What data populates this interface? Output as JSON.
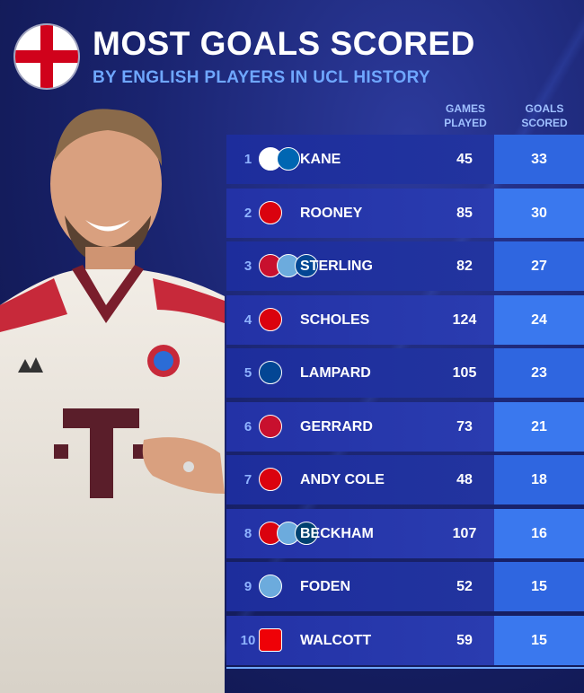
{
  "header": {
    "title": "MOST GOALS SCORED",
    "subtitle": "BY ENGLISH PLAYERS IN UCL HISTORY"
  },
  "columns": {
    "games_line1": "GAMES",
    "games_line2": "PLAYED",
    "goals_line1": "GOALS",
    "goals_line2": "SCORED"
  },
  "rows": [
    {
      "rank": "1",
      "name": "KANE",
      "games": "45",
      "goals": "33",
      "crests": [
        "tot-icon",
        "bay-icon"
      ]
    },
    {
      "rank": "2",
      "name": "ROONEY",
      "games": "85",
      "goals": "30",
      "crests": [
        "mu-icon"
      ]
    },
    {
      "rank": "3",
      "name": "STERLING",
      "games": "82",
      "goals": "27",
      "crests": [
        "liv-icon",
        "mci-icon",
        "che-icon"
      ]
    },
    {
      "rank": "4",
      "name": "SCHOLES",
      "games": "124",
      "goals": "24",
      "crests": [
        "mu-icon"
      ]
    },
    {
      "rank": "5",
      "name": "LAMPARD",
      "games": "105",
      "goals": "23",
      "crests": [
        "che-icon"
      ]
    },
    {
      "rank": "6",
      "name": "GERRARD",
      "games": "73",
      "goals": "21",
      "crests": [
        "liv-icon"
      ]
    },
    {
      "rank": "7",
      "name": "ANDY COLE",
      "games": "48",
      "goals": "18",
      "crests": [
        "mu-icon"
      ]
    },
    {
      "rank": "8",
      "name": "BECKHAM",
      "games": "107",
      "goals": "16",
      "crests": [
        "mu-icon",
        "mci-icon",
        "psg-icon"
      ]
    },
    {
      "rank": "9",
      "name": "FODEN",
      "games": "52",
      "goals": "15",
      "crests": [
        "mci-icon"
      ]
    },
    {
      "rank": "10",
      "name": "WALCOTT",
      "games": "59",
      "goals": "15",
      "crests": [
        "ars-icon"
      ]
    }
  ],
  "colors": {
    "accent": "#6fa7ff",
    "row_main": "#1d2d9c",
    "goals_cell": "#2f66e0",
    "england_red": "#d0021b"
  }
}
